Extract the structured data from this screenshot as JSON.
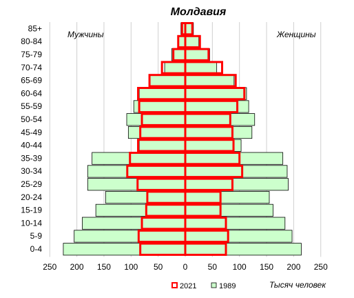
{
  "chart_data": {
    "type": "bar",
    "subtype": "population-pyramid",
    "title": "Молдавия",
    "left_label": "Мужчины",
    "right_label": "Женщины",
    "xlabel": "Тысяч человек",
    "categories": [
      "0-4",
      "5-9",
      "10-14",
      "15-19",
      "20-24",
      "25-29",
      "30-34",
      "35-39",
      "40-44",
      "45-49",
      "50-54",
      "55-59",
      "60-64",
      "65-69",
      "70-74",
      "75-79",
      "80-84",
      "85+"
    ],
    "xlim": [
      -250,
      250
    ],
    "xticks": [
      -250,
      -200,
      -150,
      -100,
      -50,
      0,
      50,
      100,
      150,
      200,
      250
    ],
    "xtick_labels": [
      "250",
      "200",
      "150",
      "100",
      "50",
      "0",
      "50",
      "100",
      "150",
      "200",
      "250"
    ],
    "grid": true,
    "legend_position": "bottom",
    "series": [
      {
        "name": "1989",
        "color": "#ccffcc",
        "border": "#000000",
        "males": [
          225,
          205,
          190,
          165,
          147,
          180,
          180,
          172,
          85,
          105,
          108,
          95,
          85,
          65,
          38,
          25,
          12,
          8
        ],
        "females": [
          214,
          197,
          184,
          162,
          155,
          190,
          188,
          180,
          103,
          123,
          128,
          117,
          113,
          90,
          58,
          45,
          25,
          15
        ]
      },
      {
        "name": "2021",
        "color": "#ff0000",
        "fill": "none",
        "males": [
          83,
          86,
          80,
          72,
          70,
          88,
          107,
          102,
          87,
          83,
          80,
          85,
          87,
          66,
          43,
          22,
          13,
          6
        ],
        "females": [
          75,
          79,
          75,
          65,
          65,
          87,
          105,
          100,
          89,
          87,
          83,
          96,
          109,
          93,
          68,
          43,
          27,
          13
        ]
      }
    ]
  }
}
